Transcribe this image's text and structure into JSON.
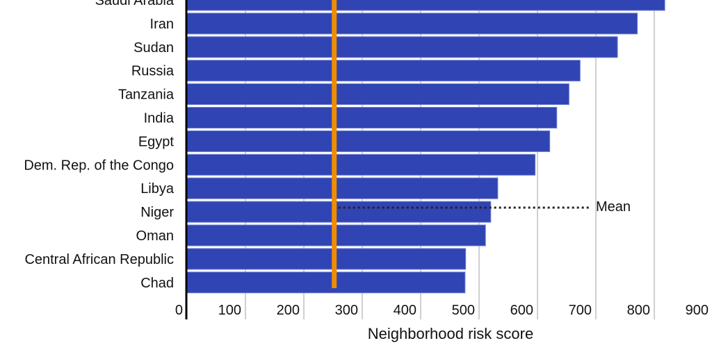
{
  "chart_data": {
    "type": "bar",
    "orientation": "horizontal",
    "categories": [
      "Saudi Arabia",
      "Iran",
      "Sudan",
      "Russia",
      "Tanzania",
      "India",
      "Egypt",
      "Dem. Rep. of the Congo",
      "Libya",
      "Niger",
      "Oman",
      "Central African Republic",
      "Chad"
    ],
    "values": [
      818,
      771,
      737,
      673,
      654,
      633,
      621,
      596,
      532,
      520,
      511,
      477,
      476
    ],
    "xlabel": "Neighborhood risk score",
    "ylabel": "",
    "xlim": [
      0,
      900
    ],
    "xticks": [
      "0",
      "100",
      "200",
      "300",
      "400",
      "500",
      "600",
      "700",
      "800",
      "900"
    ],
    "grid": true,
    "mean": {
      "value": 252,
      "label": "Mean"
    },
    "colors": {
      "bar": "#3045b3",
      "mean_line": "#f08c00",
      "grid": "#d0d0d0"
    }
  }
}
